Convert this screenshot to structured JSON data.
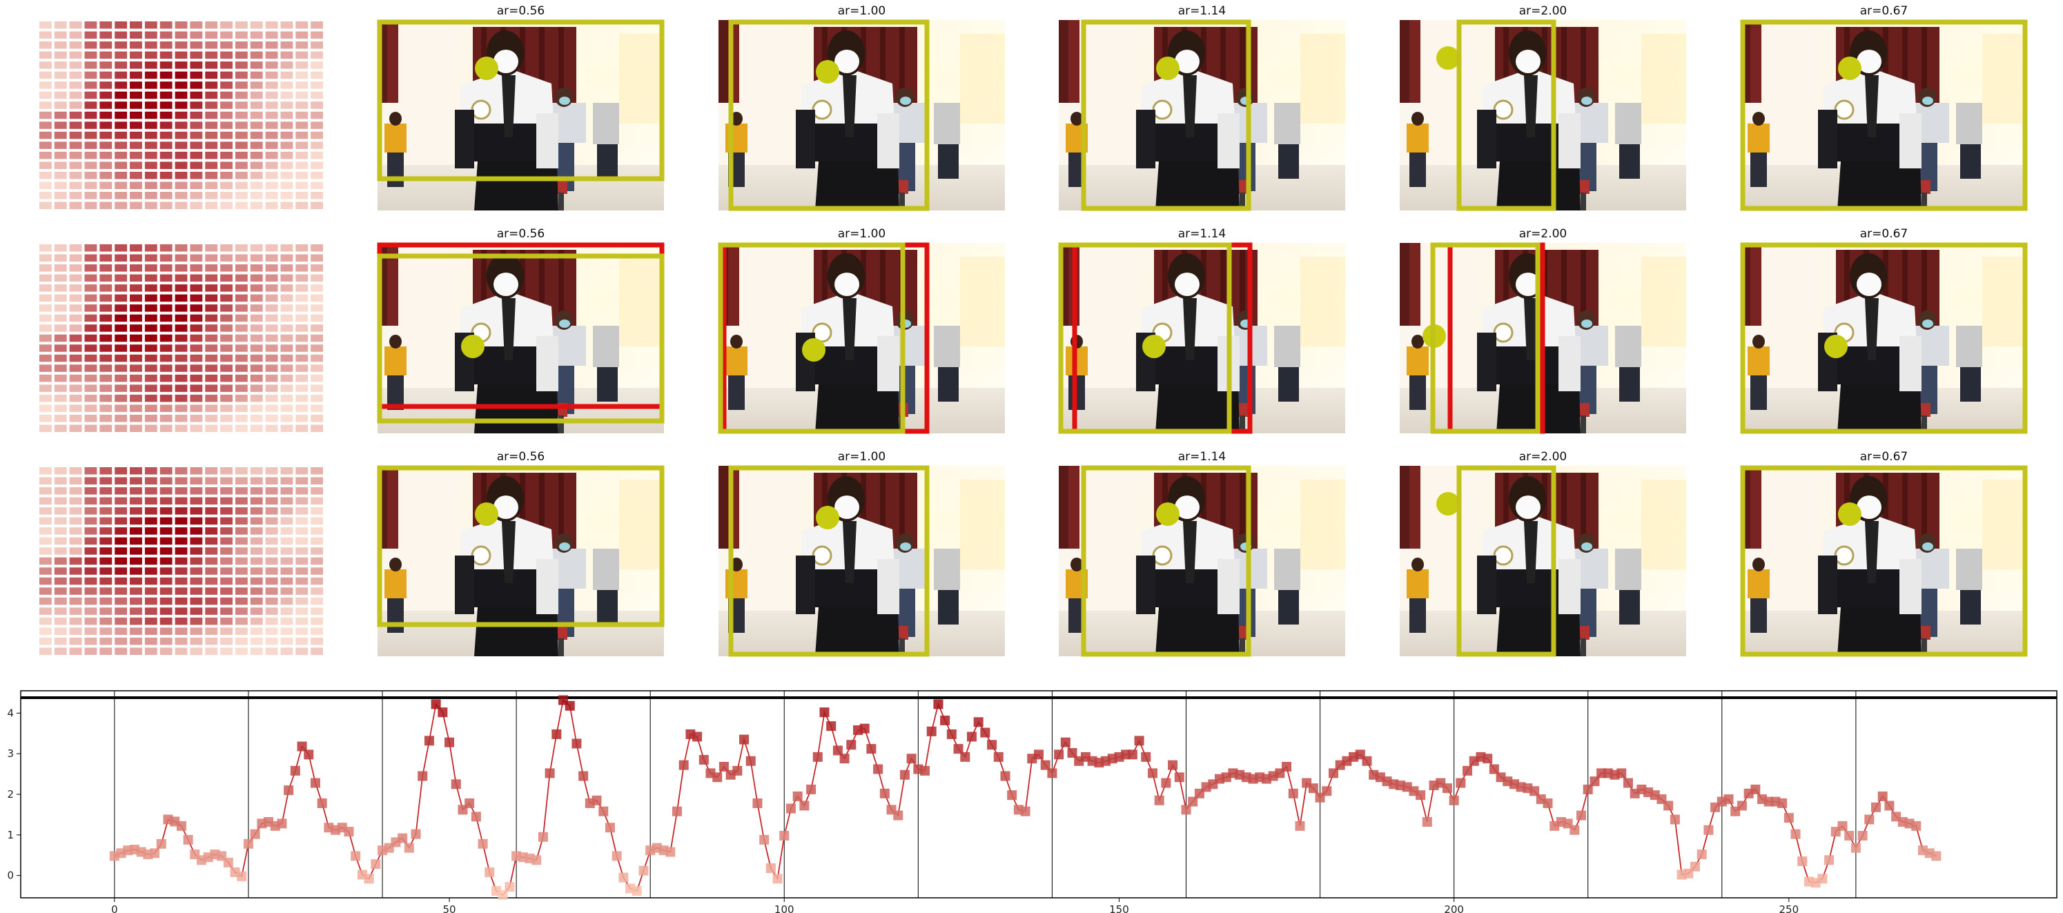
{
  "panels": {
    "rows": [
      {
        "columns": [
          {
            "title": "",
            "kind": "heatmap"
          },
          {
            "title": "ar=0.56",
            "kind": "photo",
            "boxes": [
              "yellow"
            ]
          },
          {
            "title": "ar=1.00",
            "kind": "photo",
            "boxes": [
              "yellow"
            ]
          },
          {
            "title": "ar=1.14",
            "kind": "photo",
            "boxes": [
              "yellow"
            ]
          },
          {
            "title": "ar=2.00",
            "kind": "photo",
            "boxes": [
              "yellow"
            ]
          },
          {
            "title": "ar=0.67",
            "kind": "photo",
            "boxes": [
              "yellow"
            ]
          }
        ]
      },
      {
        "columns": [
          {
            "title": "",
            "kind": "heatmap"
          },
          {
            "title": "ar=0.56",
            "kind": "photo",
            "boxes": [
              "red",
              "yellow"
            ]
          },
          {
            "title": "ar=1.00",
            "kind": "photo",
            "boxes": [
              "red",
              "yellow"
            ]
          },
          {
            "title": "ar=1.14",
            "kind": "photo",
            "boxes": [
              "red",
              "yellow"
            ]
          },
          {
            "title": "ar=2.00",
            "kind": "photo",
            "boxes": [
              "red",
              "yellow"
            ]
          },
          {
            "title": "ar=0.67",
            "kind": "photo",
            "boxes": [
              "yellow"
            ]
          }
        ]
      },
      {
        "columns": [
          {
            "title": "",
            "kind": "heatmap"
          },
          {
            "title": "ar=0.56",
            "kind": "photo",
            "boxes": [
              "yellow"
            ]
          },
          {
            "title": "ar=1.00",
            "kind": "photo",
            "boxes": [
              "yellow"
            ]
          },
          {
            "title": "ar=1.14",
            "kind": "photo",
            "boxes": [
              "yellow"
            ]
          },
          {
            "title": "ar=2.00",
            "kind": "photo",
            "boxes": [
              "yellow"
            ]
          },
          {
            "title": "ar=0.67",
            "kind": "photo",
            "boxes": [
              "yellow"
            ]
          }
        ]
      }
    ]
  },
  "colors": {
    "box_yellow": "#c2c21a",
    "box_red": "#e01010",
    "marker_dot": "#c8cc10",
    "line": "#c8272b",
    "heat_low": "#fee5d9",
    "heat_high": "#99000d"
  },
  "chart_data": {
    "type": "line",
    "title": "",
    "xlabel": "",
    "ylabel": "",
    "xlim": [
      -14,
      290
    ],
    "ylim": [
      -0.55,
      4.55
    ],
    "xticks": [
      0,
      50,
      100,
      150,
      200,
      250
    ],
    "yticks": [
      0,
      1,
      2,
      3,
      4
    ],
    "vlines": [
      0,
      20,
      40,
      60,
      80,
      100,
      120,
      140,
      160,
      180,
      200,
      220,
      240,
      260
    ],
    "hline": 4.38,
    "marker": "square",
    "x_start": 0,
    "x_step": 1,
    "values": [
      0.48,
      0.55,
      0.62,
      0.64,
      0.58,
      0.52,
      0.55,
      0.78,
      1.38,
      1.33,
      1.22,
      0.88,
      0.52,
      0.38,
      0.45,
      0.52,
      0.48,
      0.32,
      0.08,
      -0.02,
      0.78,
      1.02,
      1.28,
      1.32,
      1.22,
      1.28,
      2.1,
      2.58,
      3.18,
      2.98,
      2.28,
      1.78,
      1.18,
      1.12,
      1.18,
      1.08,
      0.48,
      0.02,
      -0.08,
      0.28,
      0.62,
      0.68,
      0.82,
      0.92,
      0.68,
      1.02,
      2.45,
      3.32,
      4.22,
      4.02,
      3.28,
      2.25,
      1.62,
      1.78,
      1.45,
      0.78,
      0.08,
      -0.38,
      -0.48,
      -0.28,
      0.48,
      0.45,
      0.42,
      0.38,
      0.95,
      2.52,
      3.48,
      4.32,
      4.18,
      3.25,
      2.45,
      1.78,
      1.85,
      1.58,
      1.18,
      0.48,
      -0.05,
      -0.32,
      -0.38,
      0.12,
      0.62,
      0.68,
      0.62,
      0.58,
      1.58,
      2.72,
      3.48,
      3.42,
      2.85,
      2.52,
      2.42,
      2.68,
      2.48,
      2.58,
      3.35,
      2.82,
      1.78,
      0.88,
      0.18,
      -0.08,
      0.98,
      1.65,
      1.95,
      1.72,
      2.12,
      2.92,
      4.02,
      3.68,
      3.08,
      2.88,
      3.22,
      3.58,
      3.62,
      3.12,
      2.62,
      2.02,
      1.62,
      1.48,
      2.48,
      2.88,
      2.62,
      2.58,
      3.55,
      4.22,
      3.82,
      3.48,
      3.12,
      2.92,
      3.42,
      3.78,
      3.52,
      3.22,
      2.92,
      2.45,
      1.98,
      1.62,
      1.58,
      2.88,
      2.98,
      2.72,
      2.52,
      2.98,
      3.28,
      3.02,
      2.82,
      2.92,
      2.82,
      2.78,
      2.82,
      2.88,
      2.92,
      2.98,
      2.98,
      3.32,
      2.92,
      2.52,
      1.85,
      2.28,
      2.72,
      2.42,
      1.62,
      1.82,
      2.02,
      2.18,
      2.25,
      2.38,
      2.42,
      2.52,
      2.48,
      2.42,
      2.38,
      2.42,
      2.38,
      2.45,
      2.52,
      2.68,
      2.02,
      1.22,
      2.28,
      2.15,
      1.92,
      2.08,
      2.52,
      2.72,
      2.82,
      2.92,
      2.98,
      2.82,
      2.48,
      2.42,
      2.32,
      2.25,
      2.22,
      2.18,
      2.08,
      1.98,
      1.32,
      2.22,
      2.28,
      2.15,
      1.85,
      2.28,
      2.58,
      2.82,
      2.92,
      2.88,
      2.62,
      2.42,
      2.32,
      2.25,
      2.18,
      2.15,
      2.08,
      1.88,
      1.78,
      1.22,
      1.32,
      1.28,
      1.12,
      1.48,
      2.12,
      2.32,
      2.52,
      2.52,
      2.48,
      2.52,
      2.28,
      2.02,
      2.12,
      2.05,
      1.98,
      1.88,
      1.72,
      1.38,
      0.02,
      0.05,
      0.22,
      0.52,
      1.12,
      1.68,
      1.82,
      1.88,
      1.58,
      1.72,
      2.02,
      2.12,
      1.88,
      1.82,
      1.82,
      1.78,
      1.42,
      1.02,
      0.35,
      -0.15,
      -0.18,
      -0.08,
      0.38,
      1.08,
      1.22,
      0.98,
      0.68,
      0.98,
      1.38,
      1.68,
      1.95,
      1.72,
      1.45,
      1.32,
      1.28,
      1.22,
      0.62,
      0.55,
      0.48
    ]
  }
}
